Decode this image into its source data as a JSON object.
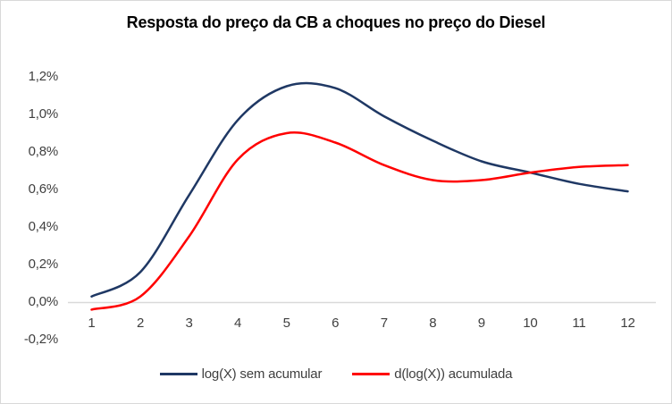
{
  "window": {
    "background": "#ffffff",
    "border_color": "#d9d9d9"
  },
  "chart_data": {
    "type": "line",
    "title": "Resposta do preço da CB a choques no preço do Diesel",
    "xlabel": "",
    "ylabel": "",
    "x": [
      1,
      2,
      3,
      4,
      5,
      6,
      7,
      8,
      9,
      10,
      11,
      12
    ],
    "x_tick_labels": [
      "1",
      "2",
      "3",
      "4",
      "5",
      "6",
      "7",
      "8",
      "9",
      "10",
      "11",
      "12"
    ],
    "series": [
      {
        "name": "log(X) sem acumular",
        "color": "#1f3864",
        "values_pct": [
          0.03,
          0.16,
          0.57,
          0.97,
          1.15,
          1.14,
          0.99,
          0.86,
          0.75,
          0.69,
          0.63,
          0.59
        ]
      },
      {
        "name": "d(log(X)) acumulada",
        "color": "#ff0000",
        "values_pct": [
          -0.04,
          0.03,
          0.35,
          0.76,
          0.9,
          0.85,
          0.73,
          0.65,
          0.65,
          0.69,
          0.72,
          0.73
        ]
      }
    ],
    "ylim_pct": [
      -0.2,
      1.2
    ],
    "y_tick_step_pct": 0.2,
    "y_tick_labels": [
      "-0,2%",
      "0,0%",
      "0,2%",
      "0,4%",
      "0,6%",
      "0,8%",
      "1,0%",
      "1,2%"
    ],
    "grid": false,
    "zero_axis_line": true,
    "axis_color": "#d9d9d9",
    "text_color": "#3f3f3f",
    "legend_position": "bottom",
    "smoothed_lines": true
  }
}
